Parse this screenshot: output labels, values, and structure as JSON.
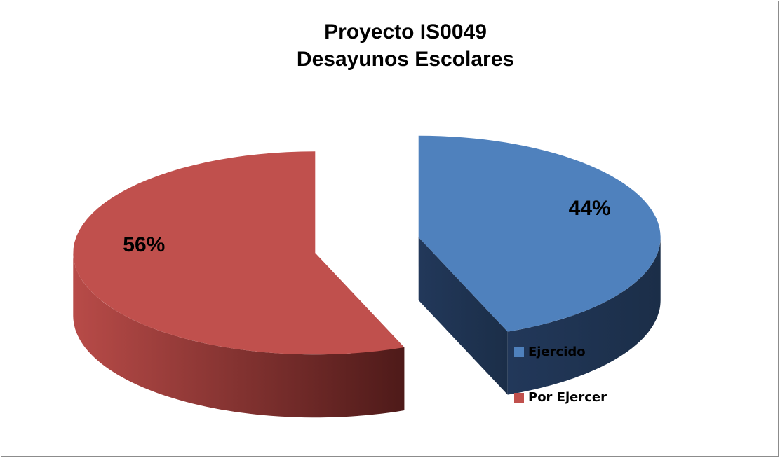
{
  "chart_data": {
    "type": "pie",
    "title": [
      "Proyecto IS0049",
      "Desayunos Escolares"
    ],
    "categories": [
      "Ejercido",
      "Por Ejercer"
    ],
    "values": [
      44,
      56
    ],
    "value_labels": [
      "44%",
      "56%"
    ],
    "colors": [
      "#4f81bd",
      "#c0504d"
    ],
    "legend": "right"
  }
}
